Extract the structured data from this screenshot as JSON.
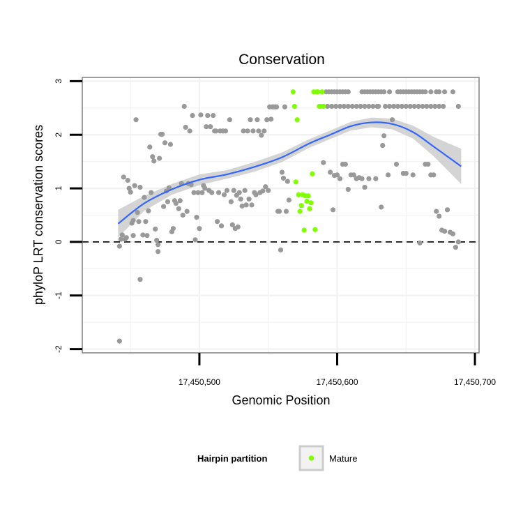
{
  "colors": {
    "background_point": "#999999",
    "mature_point": "#7fff00",
    "smooth_line": "#3366ff",
    "smooth_band": "#cccccc",
    "grid": "#f2f2f2",
    "panel_border": "#7f7f7f"
  },
  "chart_data": {
    "type": "scatter",
    "title": "Conservation",
    "xlabel": "Genomic Position",
    "ylabel": "phyloP LRT conservation scores",
    "xlim": [
      17450415,
      17450703
    ],
    "ylim": [
      -2.07,
      3.07
    ],
    "x_ticks": [
      17450500,
      17450600,
      17450700
    ],
    "x_tick_labels": [
      "17,450,500",
      "17,450,600",
      "17,450,700"
    ],
    "y_ticks": [
      -2,
      -1,
      0,
      1,
      2,
      3
    ],
    "y_tick_labels": [
      "-2",
      "-1",
      "0",
      "1",
      "2",
      "3"
    ],
    "grid": true,
    "reference_line": {
      "y": 0,
      "style": "dashed"
    },
    "legend": {
      "title": "Hairpin partition",
      "position": "bottom",
      "entries": [
        {
          "label": "Mature",
          "color": "#7fff00"
        }
      ]
    },
    "series": [
      {
        "kind": "points",
        "color": "#999999",
        "points": [
          [
            17450442,
            -1.85
          ],
          [
            17450442,
            -0.08
          ],
          [
            17450443,
            0.05
          ],
          [
            17450444,
            0.13
          ],
          [
            17450445,
            1.21
          ],
          [
            17450446,
            0.05
          ],
          [
            17450447,
            0.08
          ],
          [
            17450448,
            1.15
          ],
          [
            17450449,
            1.0
          ],
          [
            17450450,
            0.93
          ],
          [
            17450451,
            0.35
          ],
          [
            17450452,
            0.12
          ],
          [
            17450452,
            0.4
          ],
          [
            17450453,
            1.05
          ],
          [
            17450454,
            2.28
          ],
          [
            17450455,
            0.55
          ],
          [
            17450456,
            0.38
          ],
          [
            17450457,
            -0.7
          ],
          [
            17450457,
            1.02
          ],
          [
            17450459,
            0.13
          ],
          [
            17450460,
            0.83
          ],
          [
            17450461,
            0.38
          ],
          [
            17450462,
            0.12
          ],
          [
            17450463,
            0.58
          ],
          [
            17450464,
            1.77
          ],
          [
            17450465,
            0.92
          ],
          [
            17450466,
            1.59
          ],
          [
            17450467,
            1.51
          ],
          [
            17450468,
            0.24
          ],
          [
            17450469,
            0.03
          ],
          [
            17450470,
            -0.18
          ],
          [
            17450470,
            -0.05
          ],
          [
            17450471,
            1.56
          ],
          [
            17450472,
            2.01
          ],
          [
            17450473,
            2.01
          ],
          [
            17450474,
            0.66
          ],
          [
            17450475,
            1.85
          ],
          [
            17450476,
            0.95
          ],
          [
            17450477,
            0.75
          ],
          [
            17450478,
            1.01
          ],
          [
            17450479,
            1.82
          ],
          [
            17450480,
            0.19
          ],
          [
            17450481,
            0.25
          ],
          [
            17450482,
            0.77
          ],
          [
            17450483,
            0.72
          ],
          [
            17450485,
            0.62
          ],
          [
            17450486,
            0.77
          ],
          [
            17450487,
            1.09
          ],
          [
            17450488,
            0.5
          ],
          [
            17450489,
            2.53
          ],
          [
            17450490,
            2.14
          ],
          [
            17450491,
            0.57
          ],
          [
            17450492,
            1.09
          ],
          [
            17450493,
            2.07
          ],
          [
            17450494,
            1.07
          ],
          [
            17450495,
            2.36
          ],
          [
            17450496,
            0.92
          ],
          [
            17450497,
            0.04
          ],
          [
            17450498,
            0.46
          ],
          [
            17450499,
            0.92
          ],
          [
            17450500,
            0.25
          ],
          [
            17450501,
            2.37
          ],
          [
            17450502,
            0.92
          ],
          [
            17450503,
            1.05
          ],
          [
            17450504,
            1.0
          ],
          [
            17450505,
            2.15
          ],
          [
            17450506,
            2.36
          ],
          [
            17450507,
            0.96
          ],
          [
            17450508,
            2.15
          ],
          [
            17450509,
            0.92
          ],
          [
            17450510,
            2.36
          ],
          [
            17450511,
            2.07
          ],
          [
            17450512,
            2.07
          ],
          [
            17450513,
            0.38
          ],
          [
            17450514,
            0.92
          ],
          [
            17450515,
            2.07
          ],
          [
            17450516,
            0.3
          ],
          [
            17450517,
            2.07
          ],
          [
            17450518,
            0.88
          ],
          [
            17450519,
            2.07
          ],
          [
            17450520,
            0.96
          ],
          [
            17450522,
            2.28
          ],
          [
            17450523,
            0.75
          ],
          [
            17450524,
            0.32
          ],
          [
            17450525,
            0.96
          ],
          [
            17450526,
            0.25
          ],
          [
            17450527,
            0.87
          ],
          [
            17450528,
            0.28
          ],
          [
            17450529,
            0.92
          ],
          [
            17450530,
            0.8
          ],
          [
            17450531,
            0.67
          ],
          [
            17450532,
            2.07
          ],
          [
            17450533,
            0.96
          ],
          [
            17450534,
            0.69
          ],
          [
            17450535,
            2.07
          ],
          [
            17450536,
            0.8
          ],
          [
            17450537,
            2.28
          ],
          [
            17450538,
            0.69
          ],
          [
            17450539,
            2.07
          ],
          [
            17450540,
            0.92
          ],
          [
            17450541,
            0.88
          ],
          [
            17450542,
            2.28
          ],
          [
            17450543,
            2.07
          ],
          [
            17450544,
            0.92
          ],
          [
            17450545,
            1.99
          ],
          [
            17450546,
            0.95
          ],
          [
            17450547,
            2.07
          ],
          [
            17450548,
            1.03
          ],
          [
            17450549,
            2.28
          ],
          [
            17450550,
            0.96
          ],
          [
            17450551,
            2.52
          ],
          [
            17450552,
            2.29
          ],
          [
            17450553,
            2.52
          ],
          [
            17450554,
            2.52
          ],
          [
            17450555,
            2.52
          ],
          [
            17450556,
            2.52
          ],
          [
            17450557,
            0.57
          ],
          [
            17450558,
            0.57
          ],
          [
            17450559,
            -0.15
          ],
          [
            17450560,
            1.3
          ],
          [
            17450561,
            1.19
          ],
          [
            17450562,
            2.52
          ],
          [
            17450563,
            0.57
          ],
          [
            17450564,
            1.13
          ],
          [
            17450565,
            0.78
          ],
          [
            17450590,
            1.48
          ],
          [
            17450595,
            1.3
          ],
          [
            17450597,
            0.6
          ],
          [
            17450598,
            1.24
          ],
          [
            17450600,
            1.25
          ],
          [
            17450602,
            1.18
          ],
          [
            17450604,
            1.45
          ],
          [
            17450606,
            1.45
          ],
          [
            17450608,
            0.98
          ],
          [
            17450610,
            1.25
          ],
          [
            17450612,
            1.25
          ],
          [
            17450614,
            1.18
          ],
          [
            17450616,
            1.2
          ],
          [
            17450618,
            1.18
          ],
          [
            17450620,
            1.02
          ],
          [
            17450623,
            1.18
          ],
          [
            17450628,
            1.18
          ],
          [
            17450630,
            2.53
          ],
          [
            17450632,
            0.65
          ],
          [
            17450633,
            1.8
          ],
          [
            17450634,
            1.98
          ],
          [
            17450637,
            1.25
          ],
          [
            17450640,
            2.28
          ],
          [
            17450643,
            1.45
          ],
          [
            17450648,
            1.28
          ],
          [
            17450650,
            1.28
          ],
          [
            17450655,
            1.25
          ],
          [
            17450660,
            -0.02
          ],
          [
            17450664,
            1.45
          ],
          [
            17450666,
            1.45
          ],
          [
            17450668,
            1.25
          ],
          [
            17450670,
            1.25
          ],
          [
            17450672,
            0.57
          ],
          [
            17450674,
            0.48
          ],
          [
            17450676,
            0.22
          ],
          [
            17450678,
            0.2
          ],
          [
            17450680,
            0.6
          ],
          [
            17450682,
            0.18
          ],
          [
            17450684,
            0.15
          ],
          [
            17450686,
            -0.1
          ],
          [
            17450688,
            0.0
          ],
          [
            17450592,
            2.8
          ],
          [
            17450594,
            2.8
          ],
          [
            17450596,
            2.8
          ],
          [
            17450598,
            2.8
          ],
          [
            17450600,
            2.8
          ],
          [
            17450602,
            2.8
          ],
          [
            17450604,
            2.8
          ],
          [
            17450606,
            2.8
          ],
          [
            17450608,
            2.8
          ],
          [
            17450618,
            2.8
          ],
          [
            17450620,
            2.8
          ],
          [
            17450622,
            2.8
          ],
          [
            17450624,
            2.8
          ],
          [
            17450626,
            2.8
          ],
          [
            17450628,
            2.8
          ],
          [
            17450630,
            2.8
          ],
          [
            17450632,
            2.8
          ],
          [
            17450634,
            2.8
          ],
          [
            17450638,
            2.8
          ],
          [
            17450644,
            2.8
          ],
          [
            17450646,
            2.8
          ],
          [
            17450648,
            2.8
          ],
          [
            17450650,
            2.8
          ],
          [
            17450652,
            2.8
          ],
          [
            17450654,
            2.8
          ],
          [
            17450656,
            2.8
          ],
          [
            17450658,
            2.8
          ],
          [
            17450660,
            2.8
          ],
          [
            17450662,
            2.8
          ],
          [
            17450664,
            2.8
          ],
          [
            17450668,
            2.8
          ],
          [
            17450672,
            2.8
          ],
          [
            17450674,
            2.8
          ],
          [
            17450678,
            2.8
          ],
          [
            17450684,
            2.8
          ],
          [
            17450590,
            2.53
          ],
          [
            17450593,
            2.53
          ],
          [
            17450596,
            2.53
          ],
          [
            17450599,
            2.53
          ],
          [
            17450602,
            2.53
          ],
          [
            17450605,
            2.53
          ],
          [
            17450608,
            2.53
          ],
          [
            17450611,
            2.53
          ],
          [
            17450614,
            2.53
          ],
          [
            17450617,
            2.53
          ],
          [
            17450620,
            2.53
          ],
          [
            17450623,
            2.53
          ],
          [
            17450626,
            2.53
          ],
          [
            17450629,
            2.53
          ],
          [
            17450635,
            2.53
          ],
          [
            17450638,
            2.53
          ],
          [
            17450641,
            2.53
          ],
          [
            17450644,
            2.53
          ],
          [
            17450647,
            2.53
          ],
          [
            17450650,
            2.53
          ],
          [
            17450653,
            2.53
          ],
          [
            17450656,
            2.53
          ],
          [
            17450659,
            2.53
          ],
          [
            17450662,
            2.53
          ],
          [
            17450665,
            2.53
          ],
          [
            17450668,
            2.53
          ],
          [
            17450671,
            2.53
          ],
          [
            17450674,
            2.53
          ],
          [
            17450677,
            2.53
          ],
          [
            17450688,
            2.53
          ]
        ]
      },
      {
        "kind": "points",
        "name": "Mature",
        "color": "#7fff00",
        "points": [
          [
            17450568,
            2.8
          ],
          [
            17450569,
            2.53
          ],
          [
            17450570,
            1.12
          ],
          [
            17450571,
            2.28
          ],
          [
            17450572,
            0.88
          ],
          [
            17450573,
            0.57
          ],
          [
            17450574,
            0.68
          ],
          [
            17450575,
            0.88
          ],
          [
            17450576,
            0.22
          ],
          [
            17450577,
            0.86
          ],
          [
            17450578,
            0.76
          ],
          [
            17450579,
            0.86
          ],
          [
            17450580,
            0.62
          ],
          [
            17450581,
            0.73
          ],
          [
            17450582,
            1.27
          ],
          [
            17450583,
            2.8
          ],
          [
            17450584,
            0.23
          ],
          [
            17450585,
            2.8
          ],
          [
            17450586,
            2.8
          ],
          [
            17450587,
            2.53
          ],
          [
            17450588,
            2.53
          ],
          [
            17450589,
            2.8
          ],
          [
            17450590,
            2.53
          ]
        ]
      },
      {
        "kind": "smooth",
        "color": "#3366ff",
        "x": [
          17450441,
          17450460,
          17450480,
          17450500,
          17450520,
          17450540,
          17450560,
          17450580,
          17450595,
          17450610,
          17450625,
          17450640,
          17450655,
          17450670,
          17450690
        ],
        "y": [
          0.34,
          0.72,
          0.98,
          1.16,
          1.26,
          1.4,
          1.58,
          1.84,
          2.0,
          2.16,
          2.23,
          2.2,
          2.05,
          1.78,
          1.41
        ],
        "lower": [
          0.08,
          0.58,
          0.88,
          1.06,
          1.18,
          1.31,
          1.49,
          1.76,
          1.92,
          2.08,
          2.14,
          2.1,
          1.93,
          1.6,
          1.08
        ],
        "upper": [
          0.6,
          0.86,
          1.08,
          1.26,
          1.34,
          1.49,
          1.67,
          1.92,
          2.08,
          2.24,
          2.32,
          2.3,
          2.17,
          1.96,
          1.74
        ]
      }
    ]
  }
}
